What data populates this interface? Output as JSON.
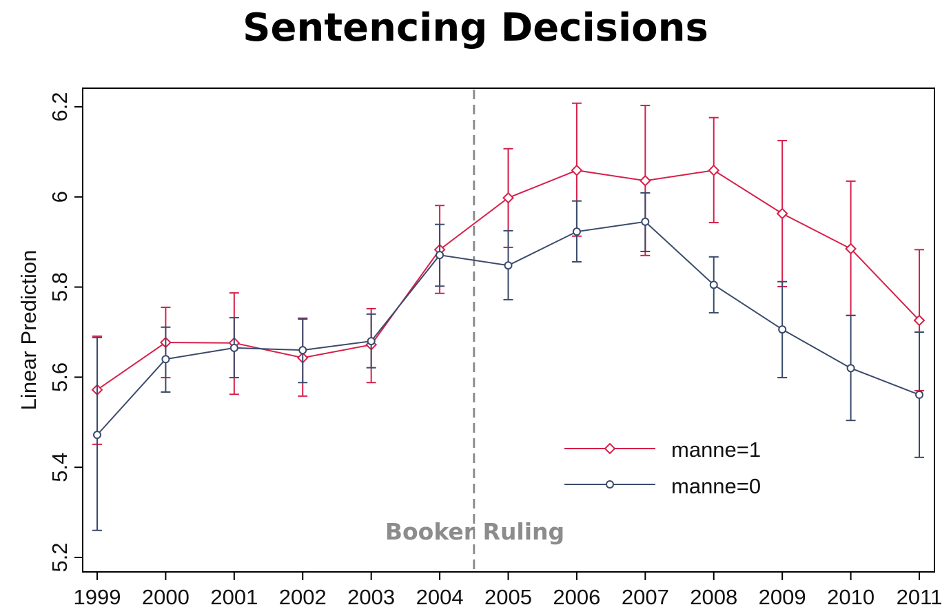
{
  "chart_data": {
    "type": "line",
    "title": "Sentencing Decisions",
    "xlabel": "",
    "ylabel": "Linear Prediction",
    "x": [
      1999,
      2000,
      2001,
      2002,
      2003,
      2004,
      2005,
      2006,
      2007,
      2008,
      2009,
      2010,
      2011
    ],
    "x_tick_labels": [
      "1999",
      "2000",
      "2001",
      "2002",
      "2003",
      "2004",
      "2005",
      "2006",
      "2007",
      "2008",
      "2009",
      "2010",
      "2011"
    ],
    "ylim": [
      5.19,
      6.22
    ],
    "y_ticks": [
      5.2,
      5.4,
      5.6,
      5.8,
      6.0,
      6.2
    ],
    "y_tick_labels": [
      "5.2",
      "5.4",
      "5.6",
      "5.8",
      "6",
      "6.2"
    ],
    "grid": false,
    "legend_position": "bottom-right",
    "series": [
      {
        "name": "manne=1",
        "color": "#d6204a",
        "marker": "diamond",
        "values": [
          5.572,
          5.677,
          5.676,
          5.643,
          5.672,
          5.883,
          5.998,
          6.059,
          6.036,
          6.059,
          5.963,
          5.885,
          5.726
        ],
        "ci_upper": [
          5.691,
          5.755,
          5.787,
          5.731,
          5.752,
          5.981,
          6.107,
          6.208,
          6.203,
          6.176,
          6.125,
          6.035,
          5.883
        ],
        "ci_lower": [
          5.451,
          5.599,
          5.562,
          5.558,
          5.588,
          5.786,
          5.888,
          5.913,
          5.87,
          5.943,
          5.801,
          5.737,
          5.57
        ]
      },
      {
        "name": "manne=0",
        "color": "#3a4a6b",
        "marker": "circle",
        "values": [
          5.472,
          5.64,
          5.665,
          5.66,
          5.68,
          5.871,
          5.848,
          5.923,
          5.945,
          5.805,
          5.706,
          5.62,
          5.561
        ],
        "ci_upper": [
          5.688,
          5.711,
          5.732,
          5.729,
          5.74,
          5.939,
          5.925,
          5.991,
          6.009,
          5.867,
          5.812,
          5.737,
          5.7
        ],
        "ci_lower": [
          5.26,
          5.567,
          5.599,
          5.588,
          5.621,
          5.802,
          5.772,
          5.856,
          5.879,
          5.743,
          5.599,
          5.504,
          5.422
        ]
      }
    ],
    "annotations": [
      {
        "text": "Booker Ruling",
        "x": 2004.5,
        "line": "vertical-dashed",
        "color": "#8c8c8c"
      }
    ]
  }
}
